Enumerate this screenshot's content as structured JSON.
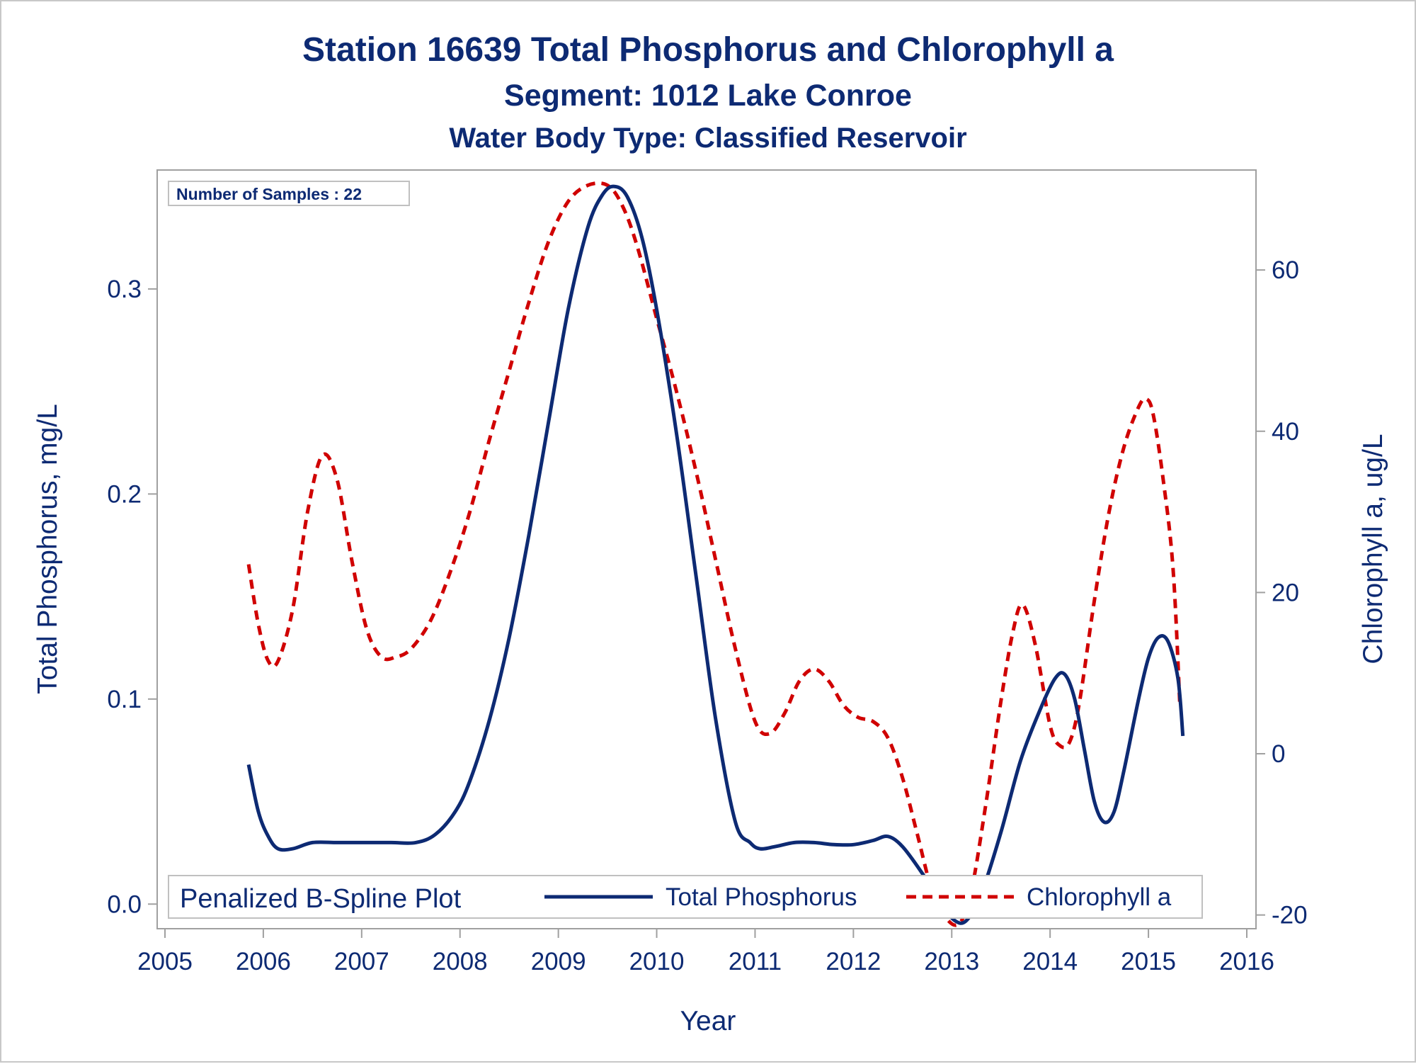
{
  "titles": {
    "title": "Station 16639  Total Phosphorus and Chlorophyll a",
    "subtitle": "Segment: 1012  Lake Conroe",
    "subtitle2": "Water Body Type: Classified Reservoir"
  },
  "inset": {
    "text": "Number of Samples : 22"
  },
  "legend": {
    "title": "Penalized B-Spline Plot",
    "items": [
      {
        "label": "Total Phosphorus"
      },
      {
        "label": "Chlorophyll a"
      }
    ]
  },
  "chart_data": {
    "type": "line",
    "title": "Station 16639  Total Phosphorus and Chlorophyll a",
    "xlabel": "Year",
    "ylabel": "Total Phosphorus, mg/L",
    "y2label": "Chlorophyll a, ug/L",
    "xlim": [
      2005,
      2016
    ],
    "ylim": [
      -0.012,
      0.358
    ],
    "y2lim": [
      -21.7,
      72.4
    ],
    "xticks": [
      "2005",
      "2006",
      "2007",
      "2008",
      "2009",
      "2010",
      "2011",
      "2012",
      "2013",
      "2014",
      "2015",
      "2016"
    ],
    "yticks": [
      "0.0",
      "0.1",
      "0.2",
      "0.3"
    ],
    "y2ticks": [
      "-20",
      "0",
      "20",
      "40",
      "60"
    ],
    "legend_position": "bottom-inside",
    "grid": false,
    "series": [
      {
        "name": "Total Phosphorus",
        "axis": "left",
        "color": "#0d2a73",
        "style": "solid",
        "x": [
          2005.85,
          2005.95,
          2006.05,
          2006.15,
          2006.3,
          2006.5,
          2006.75,
          2007.0,
          2007.3,
          2007.55,
          2007.75,
          2007.95,
          2008.1,
          2008.3,
          2008.5,
          2008.7,
          2008.9,
          2009.1,
          2009.3,
          2009.45,
          2009.57,
          2009.7,
          2009.85,
          2010.0,
          2010.2,
          2010.4,
          2010.6,
          2010.8,
          2010.95,
          2011.05,
          2011.2,
          2011.4,
          2011.6,
          2011.8,
          2012.0,
          2012.2,
          2012.35,
          2012.5,
          2012.7,
          2012.9,
          2013.03,
          2013.15,
          2013.3,
          2013.5,
          2013.7,
          2013.9,
          2014.05,
          2014.15,
          2014.25,
          2014.35,
          2014.45,
          2014.55,
          2014.65,
          2014.75,
          2014.9,
          2015.0,
          2015.1,
          2015.2,
          2015.3,
          2015.35
        ],
        "y": [
          0.068,
          0.045,
          0.033,
          0.027,
          0.027,
          0.03,
          0.03,
          0.03,
          0.03,
          0.03,
          0.034,
          0.045,
          0.06,
          0.09,
          0.13,
          0.18,
          0.235,
          0.29,
          0.33,
          0.346,
          0.35,
          0.345,
          0.325,
          0.29,
          0.23,
          0.16,
          0.09,
          0.04,
          0.03,
          0.027,
          0.028,
          0.03,
          0.03,
          0.029,
          0.029,
          0.031,
          0.033,
          0.028,
          0.015,
          0.0,
          -0.008,
          -0.008,
          0.005,
          0.035,
          0.07,
          0.095,
          0.11,
          0.112,
          0.1,
          0.075,
          0.05,
          0.04,
          0.045,
          0.065,
          0.1,
          0.12,
          0.13,
          0.128,
          0.11,
          0.082
        ]
      },
      {
        "name": "Chlorophyll a",
        "axis": "right",
        "color": "#d00000",
        "style": "dashed",
        "x": [
          2005.85,
          2005.95,
          2006.05,
          2006.15,
          2006.3,
          2006.45,
          2006.6,
          2006.75,
          2006.9,
          2007.05,
          2007.2,
          2007.35,
          2007.5,
          2007.7,
          2007.9,
          2008.1,
          2008.3,
          2008.5,
          2008.7,
          2008.9,
          2009.1,
          2009.3,
          2009.5,
          2009.65,
          2009.8,
          2010.0,
          2010.2,
          2010.4,
          2010.6,
          2010.8,
          2011.0,
          2011.15,
          2011.3,
          2011.45,
          2011.6,
          2011.75,
          2011.9,
          2012.05,
          2012.2,
          2012.35,
          2012.5,
          2012.65,
          2012.8,
          2012.95,
          2013.08,
          2013.2,
          2013.35,
          2013.5,
          2013.62,
          2013.72,
          2013.85,
          2014.0,
          2014.1,
          2014.2,
          2014.3,
          2014.45,
          2014.6,
          2014.75,
          2014.9,
          2014.98,
          2015.05,
          2015.15,
          2015.25,
          2015.32
        ],
        "y": [
          23.5,
          16,
          11.5,
          11.5,
          18,
          30,
          37,
          34,
          24,
          15.5,
          12,
          12,
          13,
          16.5,
          22.5,
          30,
          39,
          47.5,
          56,
          63.5,
          68.5,
          70.5,
          70.5,
          68,
          63,
          54,
          45,
          35,
          24,
          13,
          4,
          2.5,
          5,
          9,
          10.5,
          9,
          6,
          4.5,
          4,
          2,
          -3,
          -10,
          -17,
          -20.5,
          -21,
          -17,
          -6,
          6.5,
          15,
          18.5,
          13.5,
          3.5,
          1,
          1.5,
          6.5,
          19,
          30,
          38,
          43,
          44,
          42,
          34,
          23,
          6
        ]
      }
    ]
  }
}
